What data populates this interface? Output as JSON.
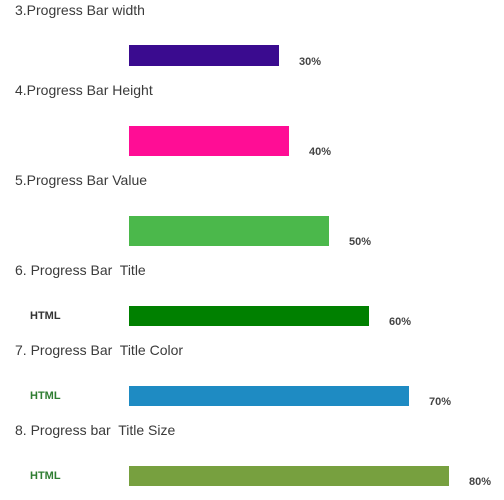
{
  "items": [
    {
      "heading": "3.Progress Bar width",
      "value": 30,
      "value_label": "30%",
      "color": "#3a0b8f"
    },
    {
      "heading": "4.Progress Bar Height",
      "value": 40,
      "value_label": "40%",
      "color": "#ff0d95"
    },
    {
      "heading": "5.Progress Bar Value",
      "value": 50,
      "value_label": "50%",
      "color": "#4bb84b"
    },
    {
      "heading": "6. Progress Bar  Title",
      "title": "HTML",
      "title_color": "#333333",
      "value": 60,
      "value_label": "60%",
      "color": "#008000"
    },
    {
      "heading": "7. Progress Bar  Title Color",
      "title": "HTML",
      "title_color": "#2e7d32",
      "value": 70,
      "value_label": "70%",
      "color": "#1e8bc3"
    },
    {
      "heading": "8. Progress bar  Title Size",
      "title": "HTML",
      "title_color": "#2e7d32",
      "value": 80,
      "value_label": "80%",
      "color": "#77a03f"
    }
  ]
}
